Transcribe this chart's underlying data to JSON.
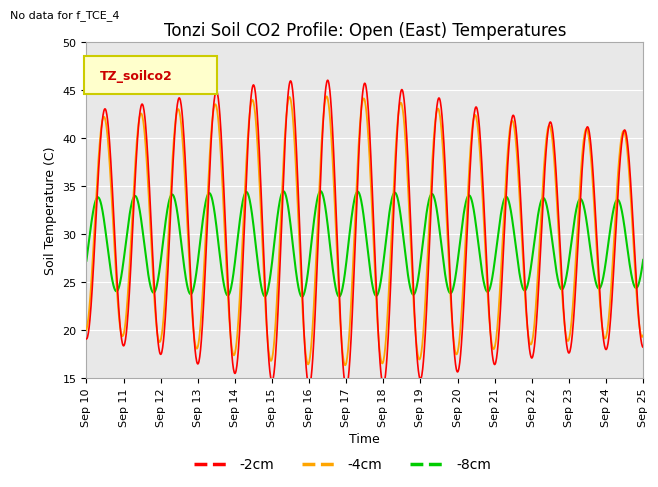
{
  "title": "Tonzi Soil CO2 Profile: Open (East) Temperatures",
  "no_data_text": "No data for f_TCE_4",
  "ylabel": "Soil Temperature (C)",
  "xlabel": "Time",
  "ylim": [
    15,
    50
  ],
  "series": [
    {
      "label": "-2cm",
      "color": "#ff0000"
    },
    {
      "label": "-4cm",
      "color": "#ffa500"
    },
    {
      "label": "-8cm",
      "color": "#00cc00"
    }
  ],
  "x_tick_labels": [
    "Sep 10",
    "Sep 11",
    "Sep 12",
    "Sep 13",
    "Sep 14",
    "Sep 15",
    "Sep 16",
    "Sep 17",
    "Sep 18",
    "Sep 19",
    "Sep 20",
    "Sep 21",
    "Sep 22",
    "Sep 23",
    "Sep 24",
    "Sep 25"
  ],
  "legend_box_color": "#ffffcc",
  "legend_box_edge": "#cccc00",
  "legend_label_text": "TZ_soilco2",
  "grid_color": "#ffffff",
  "fig_bg_color": "#ffffff",
  "plot_bg_color": "#e8e8e8",
  "title_fontsize": 12,
  "label_fontsize": 9,
  "tick_fontsize": 8
}
